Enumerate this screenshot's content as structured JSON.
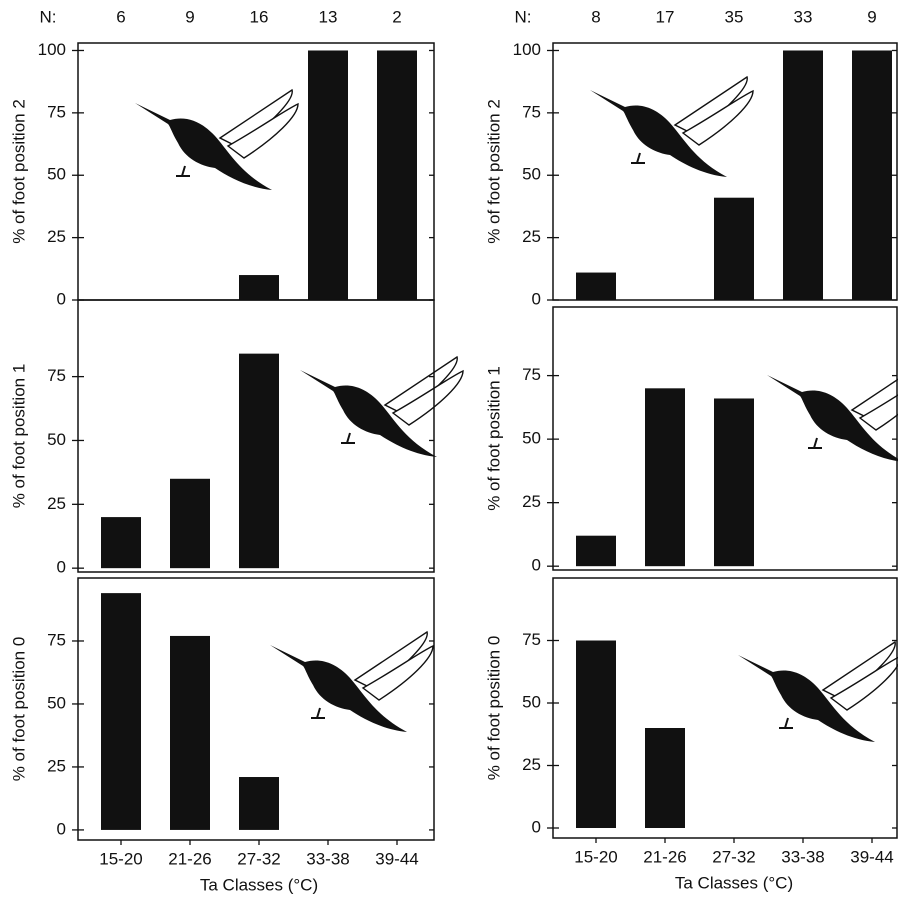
{
  "chart_data": [
    {
      "type": "bar",
      "ylabel": "% of foot position 2",
      "n_label": "N:",
      "n_values": [
        6,
        9,
        16,
        13,
        2
      ],
      "values": [
        0,
        0,
        10,
        100,
        100
      ],
      "ylim": [
        0,
        103
      ],
      "yticks": [
        0,
        25,
        50,
        75,
        100
      ],
      "color": "#111111"
    },
    {
      "type": "bar",
      "ylabel": "% of foot position 1",
      "values": [
        20,
        35,
        84,
        0,
        0
      ],
      "ylim": [
        -1.5,
        105
      ],
      "yticks": [
        0,
        25,
        50,
        75
      ],
      "color": "#111111"
    },
    {
      "type": "bar",
      "ylabel": "% of foot position 0",
      "values": [
        94,
        77,
        21,
        0,
        0
      ],
      "ylim": [
        -4,
        100
      ],
      "yticks": [
        0,
        25,
        50,
        75
      ],
      "color": "#111111",
      "categories": [
        "15-20",
        "21-26",
        "27-32",
        "33-38",
        "39-44"
      ],
      "xlabel": "Ta Classes (°C)"
    },
    {
      "type": "bar",
      "ylabel": "% of foot position 2",
      "n_label": "N:",
      "n_values": [
        8,
        17,
        35,
        33,
        9
      ],
      "values": [
        11,
        0,
        41,
        100,
        100
      ],
      "ylim": [
        0,
        103
      ],
      "yticks": [
        0,
        25,
        50,
        75,
        100
      ],
      "color": "#111111"
    },
    {
      "type": "bar",
      "ylabel": "% of foot position 1",
      "values": [
        12,
        70,
        66,
        0,
        0
      ],
      "ylim": [
        -1.5,
        102
      ],
      "yticks": [
        0,
        25,
        50,
        75
      ],
      "color": "#111111"
    },
    {
      "type": "bar",
      "ylabel": "% of foot position 0",
      "values": [
        75,
        40,
        0,
        0,
        0
      ],
      "ylim": [
        -4,
        100
      ],
      "yticks": [
        0,
        25,
        50,
        75
      ],
      "color": "#111111",
      "categories": [
        "15-20",
        "21-26",
        "27-32",
        "33-38",
        "39-44"
      ],
      "xlabel": "Ta Classes (°C)"
    }
  ]
}
